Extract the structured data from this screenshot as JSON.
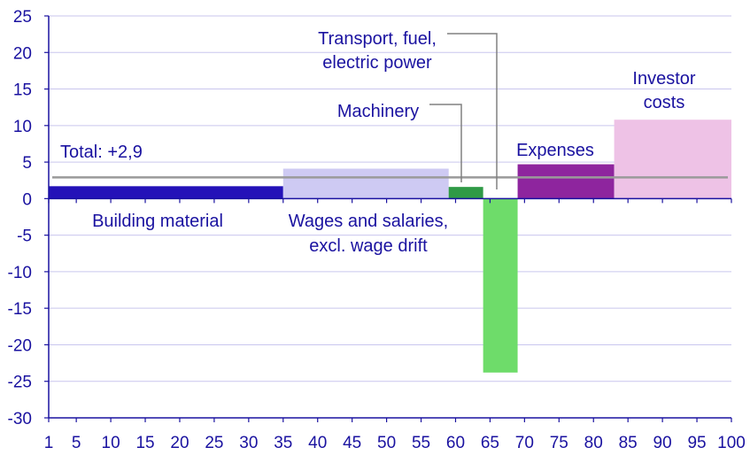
{
  "chart_data": {
    "type": "bar",
    "bar_style": "variable-width",
    "xlim": [
      1,
      100
    ],
    "ylim": [
      -30,
      25
    ],
    "x_ticks": [
      1,
      5,
      10,
      15,
      20,
      25,
      30,
      35,
      40,
      45,
      50,
      55,
      60,
      65,
      70,
      75,
      80,
      85,
      90,
      95,
      100
    ],
    "y_ticks": [
      25,
      20,
      15,
      10,
      5,
      0,
      -5,
      -10,
      -15,
      -20,
      -25,
      -30
    ],
    "grid": "horizontal",
    "total": {
      "value": 2.9,
      "label": "Total: +2,9",
      "color": "#9a9a9a"
    },
    "segments": [
      {
        "x_start": 1,
        "x_end": 35,
        "value": 1.7,
        "color": "#2412b8",
        "label_lines": [
          "Building material"
        ]
      },
      {
        "x_start": 35,
        "x_end": 59,
        "value": 4.1,
        "color": "#cecaf3",
        "label_lines": [
          "Wages and salaries,",
          "excl. wage drift"
        ]
      },
      {
        "x_start": 59,
        "x_end": 64,
        "value": 1.6,
        "color": "#2f9a46",
        "label_lines": [
          "Machinery"
        ]
      },
      {
        "x_start": 64,
        "x_end": 69,
        "value": -23.8,
        "color": "#6edc6a",
        "label_lines": [
          "Transport, fuel,",
          "electric power"
        ]
      },
      {
        "x_start": 69,
        "x_end": 83,
        "value": 4.7,
        "color": "#8e259e",
        "label_lines": [
          "Expenses"
        ]
      },
      {
        "x_start": 83,
        "x_end": 101,
        "value": 10.8,
        "color": "#eec2e6",
        "label_lines": [
          "Investor",
          "costs"
        ]
      }
    ]
  }
}
